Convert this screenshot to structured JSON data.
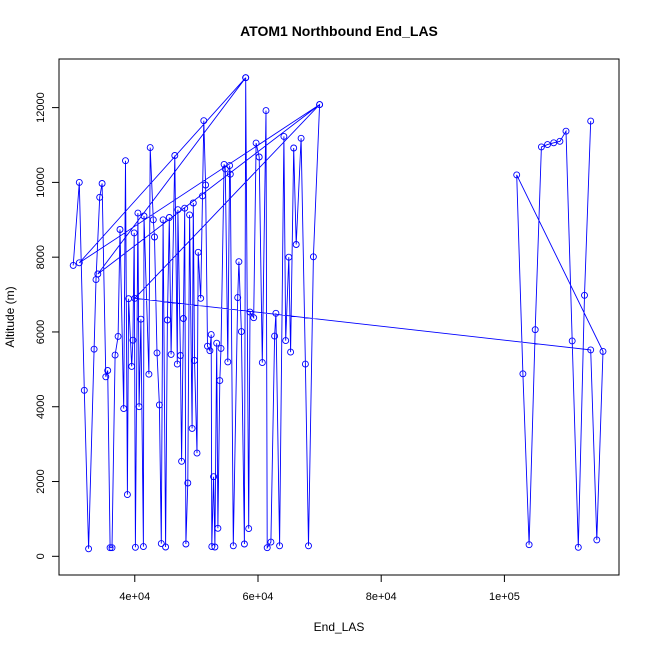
{
  "chart_data": {
    "type": "line",
    "title": "ATOM1 Northbound End_LAS",
    "xlabel": "End_LAS",
    "ylabel": "Altitude (m)",
    "xlim": [
      27700,
      118600
    ],
    "ylim": [
      -500,
      13300
    ],
    "x_ticks": [
      40000,
      60000,
      80000,
      100000
    ],
    "x_tick_labels": [
      "4e+04",
      "6e+04",
      "8e+04",
      "1e+05"
    ],
    "y_ticks": [
      0,
      2000,
      4000,
      6000,
      8000,
      10000,
      12000
    ],
    "y_tick_labels": [
      "0",
      "2000",
      "4000",
      "6000",
      "8000",
      "10000",
      "12000"
    ],
    "grid": false,
    "line_color": "#0000ff",
    "marker": "open-circle",
    "series": [
      {
        "name": "",
        "points": [
          [
            30000,
            7780
          ],
          [
            31000,
            10000
          ],
          [
            31800,
            4440
          ],
          [
            32500,
            200
          ],
          [
            33400,
            5540
          ],
          [
            33700,
            7400
          ],
          [
            34300,
            9600
          ],
          [
            34700,
            9970
          ],
          [
            35300,
            4800
          ],
          [
            35600,
            4970
          ],
          [
            36000,
            230
          ],
          [
            36300,
            230
          ],
          [
            36800,
            5380
          ],
          [
            37300,
            5880
          ],
          [
            37600,
            8740
          ],
          [
            38200,
            3950
          ],
          [
            38500,
            10580
          ],
          [
            38800,
            1650
          ],
          [
            39000,
            6890
          ],
          [
            39500,
            5080
          ],
          [
            39700,
            5780
          ],
          [
            39900,
            8650
          ],
          [
            40100,
            240
          ],
          [
            40500,
            9180
          ],
          [
            40700,
            4000
          ],
          [
            41000,
            6340
          ],
          [
            41400,
            260
          ],
          [
            41500,
            9100
          ],
          [
            42300,
            4870
          ],
          [
            42500,
            10930
          ],
          [
            43000,
            9000
          ],
          [
            43200,
            8540
          ],
          [
            43600,
            5440
          ],
          [
            44000,
            4050
          ],
          [
            44300,
            340
          ],
          [
            44600,
            9000
          ],
          [
            45000,
            250
          ],
          [
            45300,
            6320
          ],
          [
            45600,
            9060
          ],
          [
            45900,
            5400
          ],
          [
            46500,
            10720
          ],
          [
            46900,
            5140
          ],
          [
            47000,
            9270
          ],
          [
            47400,
            5370
          ],
          [
            47600,
            2540
          ],
          [
            47900,
            6360
          ],
          [
            48100,
            9310
          ],
          [
            48300,
            330
          ],
          [
            48600,
            1960
          ],
          [
            48900,
            9130
          ],
          [
            49300,
            3420
          ],
          [
            49500,
            9450
          ],
          [
            49700,
            5240
          ],
          [
            50100,
            2760
          ],
          [
            50300,
            8130
          ],
          [
            50700,
            6900
          ],
          [
            51000,
            9640
          ],
          [
            51200,
            11650
          ],
          [
            51500,
            9930
          ],
          [
            51800,
            5620
          ],
          [
            52200,
            5500
          ],
          [
            52400,
            5930
          ],
          [
            52500,
            260
          ],
          [
            52800,
            2130
          ],
          [
            53000,
            250
          ],
          [
            53300,
            5700
          ],
          [
            53500,
            750
          ],
          [
            53800,
            4700
          ],
          [
            54000,
            5560
          ],
          [
            54500,
            10480
          ],
          [
            54700,
            10360
          ],
          [
            55100,
            5200
          ],
          [
            55400,
            10450
          ],
          [
            55500,
            10220
          ],
          [
            56000,
            280
          ],
          [
            56700,
            6920
          ],
          [
            56900,
            7880
          ],
          [
            57300,
            6010
          ],
          [
            57800,
            330
          ],
          [
            58000,
            12800
          ],
          [
            58500,
            740
          ],
          [
            58700,
            6530
          ],
          [
            59300,
            6380
          ],
          [
            59700,
            11050
          ],
          [
            60200,
            10680
          ],
          [
            60700,
            5180
          ],
          [
            61300,
            11920
          ],
          [
            61500,
            230
          ],
          [
            62100,
            380
          ],
          [
            62700,
            5890
          ],
          [
            62900,
            6500
          ],
          [
            63500,
            280
          ],
          [
            64200,
            11230
          ],
          [
            64500,
            5770
          ],
          [
            65000,
            8000
          ],
          [
            65300,
            5460
          ],
          [
            65800,
            10920
          ],
          [
            66200,
            8340
          ],
          [
            67000,
            11180
          ],
          [
            67700,
            5140
          ],
          [
            68200,
            280
          ],
          [
            69000,
            8010
          ],
          [
            70000,
            12080
          ],
          [
            34000,
            7550
          ],
          [
            58000,
            12800
          ],
          [
            31000,
            7850
          ],
          [
            70000,
            12080
          ],
          [
            40000,
            6900
          ],
          [
            114000,
            5520
          ],
          [
            115000,
            440
          ],
          [
            116000,
            5480
          ],
          [
            102000,
            10200
          ],
          [
            103000,
            4880
          ],
          [
            104000,
            310
          ],
          [
            105000,
            6060
          ],
          [
            106000,
            10950
          ],
          [
            107000,
            11010
          ],
          [
            108000,
            11060
          ],
          [
            109000,
            11100
          ],
          [
            110000,
            11370
          ],
          [
            111000,
            5760
          ],
          [
            112000,
            240
          ],
          [
            113000,
            6980
          ],
          [
            114000,
            11640
          ]
        ]
      }
    ]
  }
}
